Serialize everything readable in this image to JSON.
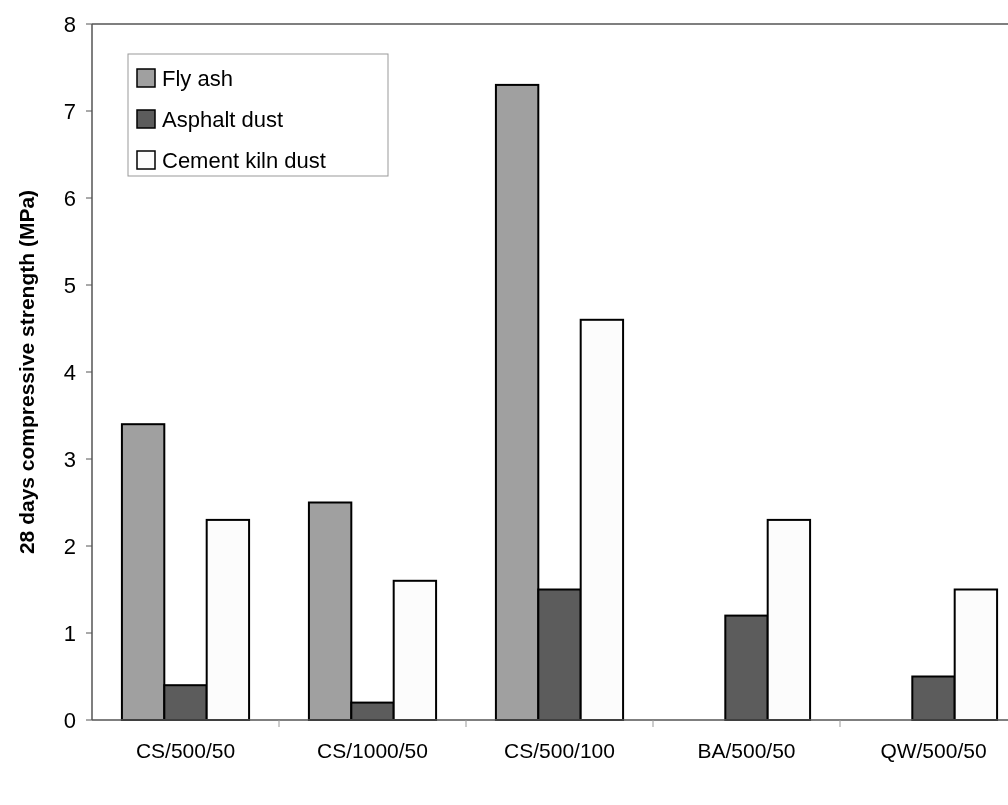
{
  "chart_data": {
    "type": "bar",
    "ylabel": "28 days compressive strength (MPa)",
    "categories": [
      "CS/500/50",
      "CS/1000/50",
      "CS/500/100",
      "BA/500/50",
      "QW/500/50"
    ],
    "series": [
      {
        "name": "Fly ash",
        "color": "#a0a0a0",
        "values": [
          3.4,
          2.5,
          7.3,
          null,
          null
        ]
      },
      {
        "name": "Asphalt dust",
        "color": "#5c5c5c",
        "values": [
          0.4,
          0.2,
          1.5,
          1.2,
          0.5
        ]
      },
      {
        "name": "Cement kiln dust",
        "color": "#fcfcfc",
        "values": [
          2.3,
          1.6,
          4.6,
          2.3,
          1.5
        ]
      }
    ],
    "ylim": [
      0,
      8
    ],
    "yticks": [
      0,
      1,
      2,
      3,
      4,
      5,
      6,
      7,
      8
    ],
    "legend": "top left",
    "grid": false
  }
}
